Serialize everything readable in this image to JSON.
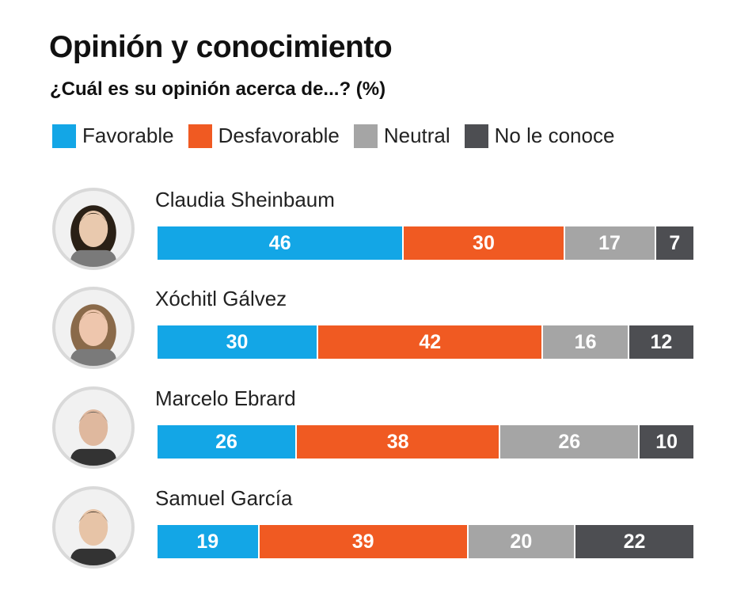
{
  "header": {
    "title": "Opinión y conocimiento",
    "subtitle": "¿Cuál es su opinión acerca de...? (%)"
  },
  "legend": [
    {
      "label": "Favorable",
      "color": "#13a6e6"
    },
    {
      "label": "Desfavorable",
      "color": "#f05a22"
    },
    {
      "label": "Neutral",
      "color": "#a5a5a5"
    },
    {
      "label": "No le conoce",
      "color": "#4d4e52"
    }
  ],
  "chart_data": {
    "type": "bar",
    "orientation": "horizontal",
    "stacked": true,
    "title": "Opinión y conocimiento",
    "subtitle": "¿Cuál es su opinión acerca de...? (%)",
    "categories": [
      "Claudia Sheinbaum",
      "Xóchitl Gálvez",
      "Marcelo Ebrard",
      "Samuel García"
    ],
    "series": [
      {
        "name": "Favorable",
        "color": "#13a6e6",
        "values": [
          46,
          30,
          26,
          19
        ]
      },
      {
        "name": "Desfavorable",
        "color": "#f05a22",
        "values": [
          30,
          42,
          38,
          39
        ]
      },
      {
        "name": "Neutral",
        "color": "#a5a5a5",
        "values": [
          17,
          16,
          26,
          20
        ]
      },
      {
        "name": "No le conoce",
        "color": "#4d4e52",
        "values": [
          7,
          12,
          10,
          22
        ]
      }
    ],
    "legend_position": "top-left",
    "grid": false
  }
}
